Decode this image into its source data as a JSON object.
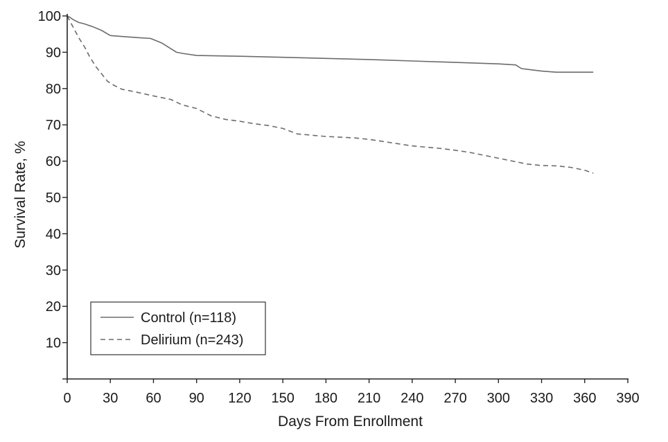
{
  "chart_data": {
    "type": "line",
    "title": "",
    "xlabel": "Days From Enrollment",
    "ylabel": "Survival Rate, %",
    "xlim": [
      0,
      390
    ],
    "ylim": [
      0,
      100
    ],
    "x_ticks": [
      0,
      30,
      60,
      90,
      120,
      150,
      180,
      210,
      240,
      270,
      300,
      330,
      360,
      390
    ],
    "y_ticks": [
      10,
      20,
      30,
      40,
      50,
      60,
      70,
      80,
      90,
      100
    ],
    "grid": false,
    "legend_position": "bottom-left",
    "series": [
      {
        "name": "Control (n=118)",
        "style": "solid",
        "color": "#6b6b6b",
        "x": [
          0,
          2,
          4,
          8,
          12,
          18,
          24,
          30,
          40,
          50,
          58,
          66,
          72,
          76,
          80,
          90,
          120,
          150,
          180,
          210,
          240,
          270,
          300,
          312,
          316,
          330,
          340,
          366
        ],
        "y": [
          100,
          99.6,
          99,
          98.2,
          97.8,
          97,
          96,
          94.6,
          94.3,
          94,
          93.8,
          92.5,
          91,
          90,
          89.7,
          89.1,
          88.9,
          88.6,
          88.3,
          88.0,
          87.6,
          87.2,
          86.8,
          86.5,
          85.5,
          84.8,
          84.5,
          84.5
        ]
      },
      {
        "name": "Delirium (n=243)",
        "style": "dashed",
        "color": "#6b6b6b",
        "x": [
          0,
          2,
          4,
          8,
          12,
          16,
          20,
          24,
          28,
          32,
          38,
          46,
          54,
          62,
          72,
          80,
          90,
          100,
          110,
          120,
          130,
          140,
          150,
          160,
          180,
          200,
          210,
          220,
          240,
          260,
          270,
          280,
          290,
          300,
          310,
          320,
          330,
          340,
          350,
          360,
          366
        ],
        "y": [
          100,
          98.5,
          97,
          94,
          91.5,
          88.5,
          86,
          84,
          82,
          81,
          79.8,
          79.2,
          78.5,
          77.8,
          77,
          75.5,
          74.5,
          72.5,
          71.5,
          71,
          70.3,
          69.8,
          69,
          67.5,
          66.8,
          66.4,
          66,
          65.4,
          64.2,
          63.5,
          63,
          62.4,
          61.6,
          60.8,
          60,
          59.2,
          58.8,
          58.7,
          58.3,
          57.5,
          56.7
        ]
      }
    ]
  }
}
